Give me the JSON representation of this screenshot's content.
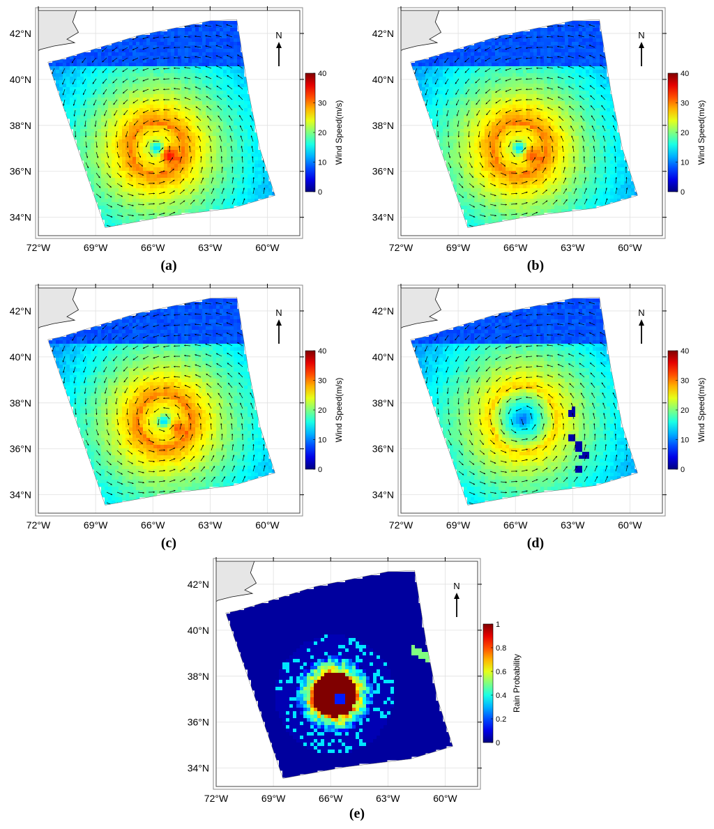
{
  "figure": {
    "north_label": "N",
    "lat_labels": [
      "42°N",
      "40°N",
      "38°N",
      "36°N",
      "34°N"
    ],
    "lon_labels": [
      "72°W",
      "69°W",
      "66°W",
      "63°W",
      "60°W"
    ]
  },
  "panels": [
    {
      "caption": "(a)",
      "colorbar_label": "Wind Speed(m/s)",
      "colorbar_ticks": [
        "40",
        "30",
        "20",
        "10",
        "0"
      ],
      "field": "wind",
      "variant": "a"
    },
    {
      "caption": "(b)",
      "colorbar_label": "Wind Speed(m/s)",
      "colorbar_ticks": [
        "40",
        "30",
        "20",
        "10",
        "0"
      ],
      "field": "wind",
      "variant": "b"
    },
    {
      "caption": "(c)",
      "colorbar_label": "Wind Speed(m/s)",
      "colorbar_ticks": [
        "40",
        "30",
        "20",
        "10",
        "0"
      ],
      "field": "wind",
      "variant": "c"
    },
    {
      "caption": "(d)",
      "colorbar_label": "Wind Speed(m/s)",
      "colorbar_ticks": [
        "40",
        "30",
        "20",
        "10",
        "0"
      ],
      "field": "wind",
      "variant": "d"
    },
    {
      "caption": "(e)",
      "colorbar_label": "Rain Probability",
      "colorbar_ticks": [
        "1",
        "0.8",
        "0.6",
        "0.4",
        "0.2",
        "0"
      ],
      "field": "rain",
      "variant": "e"
    }
  ],
  "chart_data": [
    {
      "type": "heatmap",
      "title": "",
      "xlabel": "",
      "ylabel": "",
      "x_ticks": [
        "72°W",
        "69°W",
        "66°W",
        "63°W",
        "60°W"
      ],
      "y_ticks": [
        "42°N",
        "40°N",
        "38°N",
        "36°N",
        "34°N"
      ],
      "colorbar": {
        "label": "Wind Speed(m/s)",
        "range": [
          0,
          40
        ]
      },
      "vortex_center": {
        "lon": -65.8,
        "lat": 37.0
      },
      "max_value": 38,
      "overlay": "wind vectors",
      "grid": true
    },
    {
      "type": "heatmap",
      "title": "",
      "xlabel": "",
      "ylabel": "",
      "x_ticks": [
        "72°W",
        "69°W",
        "66°W",
        "63°W",
        "60°W"
      ],
      "y_ticks": [
        "42°N",
        "40°N",
        "38°N",
        "36°N",
        "34°N"
      ],
      "colorbar": {
        "label": "Wind Speed(m/s)",
        "range": [
          0,
          40
        ]
      },
      "vortex_center": {
        "lon": -65.8,
        "lat": 37.0
      },
      "max_value": 35,
      "overlay": "wind vectors",
      "grid": true
    },
    {
      "type": "heatmap",
      "title": "",
      "xlabel": "",
      "ylabel": "",
      "x_ticks": [
        "72°W",
        "69°W",
        "66°W",
        "63°W",
        "60°W"
      ],
      "y_ticks": [
        "42°N",
        "40°N",
        "38°N",
        "36°N",
        "34°N"
      ],
      "colorbar": {
        "label": "Wind Speed(m/s)",
        "range": [
          0,
          40
        ]
      },
      "vortex_center": {
        "lon": -65.4,
        "lat": 37.2
      },
      "max_value": 34,
      "overlay": "wind vectors",
      "grid": true
    },
    {
      "type": "heatmap",
      "title": "",
      "xlabel": "",
      "ylabel": "",
      "x_ticks": [
        "72°W",
        "69°W",
        "66°W",
        "63°W",
        "60°W"
      ],
      "y_ticks": [
        "42°N",
        "40°N",
        "38°N",
        "36°N",
        "34°N"
      ],
      "colorbar": {
        "label": "Wind Speed(m/s)",
        "range": [
          0,
          40
        ]
      },
      "vortex_center": {
        "lon": -65.6,
        "lat": 37.3
      },
      "max_value": 26,
      "overlay": "wind vectors",
      "grid": true
    },
    {
      "type": "heatmap",
      "title": "",
      "xlabel": "",
      "ylabel": "",
      "x_ticks": [
        "72°W",
        "69°W",
        "66°W",
        "63°W",
        "60°W"
      ],
      "y_ticks": [
        "42°N",
        "40°N",
        "38°N",
        "36°N",
        "34°N"
      ],
      "colorbar": {
        "label": "Rain Probability",
        "range": [
          0,
          1
        ]
      },
      "rain_core_center": {
        "lon": -65.8,
        "lat": 37.2
      },
      "max_value": 1.0,
      "grid": true
    }
  ]
}
